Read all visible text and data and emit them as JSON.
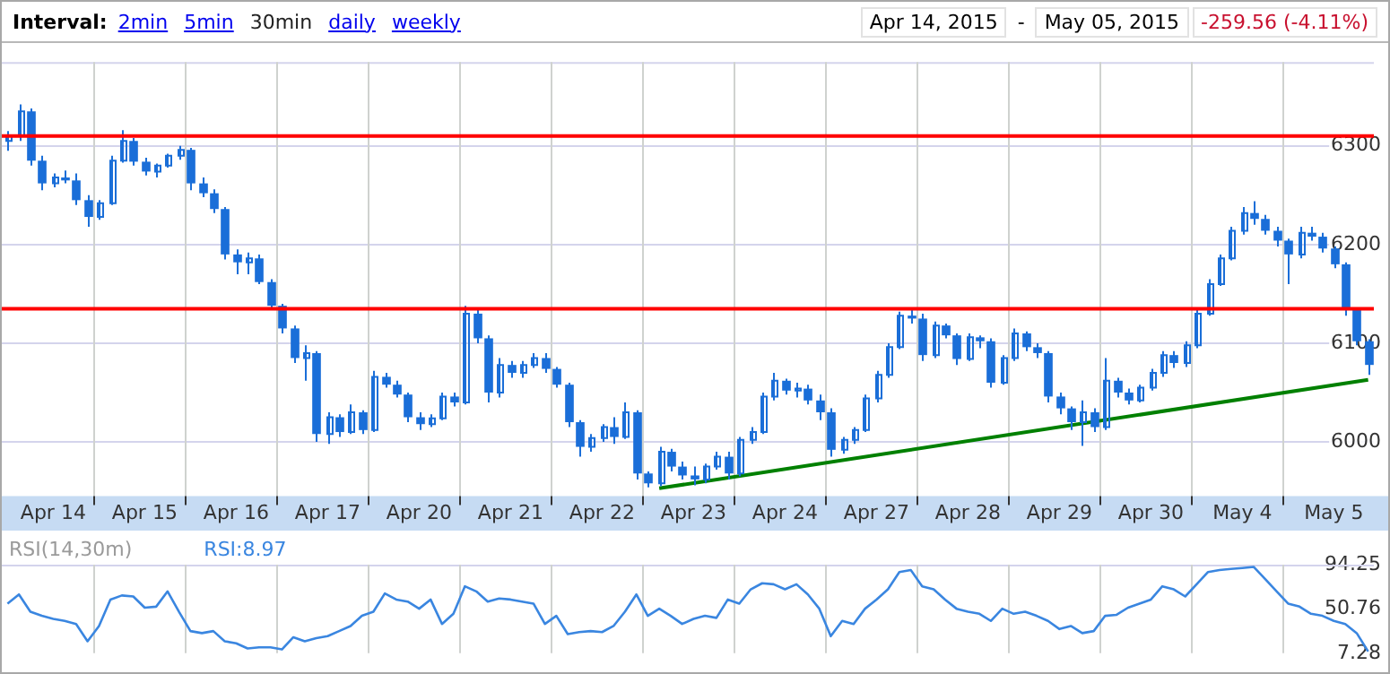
{
  "chart_data": [
    {
      "type": "candlestick",
      "annotations": [
        "Interval:",
        "2min",
        "5min",
        "30min",
        "daily",
        "weekly",
        "Apr 14, 2015",
        "-",
        "May 05, 2015",
        "-259.56 (-4.11%)"
      ],
      "categories": [
        null,
        null,
        null,
        null,
        "Apr 14",
        null,
        null,
        null,
        null,
        null,
        null,
        null,
        "Apr 15",
        null,
        null,
        null,
        null,
        null,
        null,
        null,
        "Apr 16",
        null,
        null,
        null,
        null,
        null,
        null,
        null,
        "Apr 17",
        null,
        null,
        null,
        null,
        null,
        null,
        null,
        "Apr 20",
        null,
        null,
        null,
        null,
        null,
        null,
        null,
        "Apr 21",
        null,
        null,
        null,
        null,
        null,
        null,
        null,
        "Apr 22",
        null,
        null,
        null,
        null,
        null,
        null,
        null,
        "Apr 23",
        null,
        null,
        null,
        null,
        null,
        null,
        null,
        "Apr 24",
        null,
        null,
        null,
        null,
        null,
        null,
        null,
        "Apr 27",
        null,
        null,
        null,
        null,
        null,
        null,
        null,
        "Apr 28",
        null,
        null,
        null,
        null,
        null,
        null,
        null,
        "Apr 29",
        null,
        null,
        null,
        null,
        null,
        null,
        null,
        "Apr 30",
        null,
        null,
        null,
        null,
        null,
        null,
        null,
        "May 4",
        null,
        null,
        null,
        null,
        null,
        null,
        null,
        "May 5",
        null,
        null,
        null
      ],
      "ohlc": [
        [
          6305,
          6315,
          6295,
          6310
        ],
        [
          6310,
          6342,
          6305,
          6335
        ],
        [
          6335,
          6338,
          6280,
          6285
        ],
        [
          6285,
          6290,
          6255,
          6262
        ],
        [
          6262,
          6272,
          6258,
          6268
        ],
        [
          6268,
          6275,
          6262,
          6265
        ],
        [
          6265,
          6272,
          6240,
          6245
        ],
        [
          6245,
          6250,
          6218,
          6228
        ],
        [
          6228,
          6245,
          6225,
          6242
        ],
        [
          6242,
          6290,
          6240,
          6285
        ],
        [
          6285,
          6316,
          6283,
          6305
        ],
        [
          6305,
          6308,
          6280,
          6284
        ],
        [
          6284,
          6288,
          6270,
          6274
        ],
        [
          6274,
          6282,
          6268,
          6280
        ],
        [
          6280,
          6292,
          6278,
          6290
        ],
        [
          6290,
          6300,
          6286,
          6296
        ],
        [
          6296,
          6298,
          6255,
          6262
        ],
        [
          6262,
          6268,
          6248,
          6252
        ],
        [
          6252,
          6256,
          6232,
          6236
        ],
        [
          6236,
          6238,
          6185,
          6190
        ],
        [
          6190,
          6195,
          6170,
          6182
        ],
        [
          6182,
          6192,
          6170,
          6186
        ],
        [
          6186,
          6190,
          6160,
          6162
        ],
        [
          6162,
          6165,
          6135,
          6138
        ],
        [
          6138,
          6140,
          6110,
          6115
        ],
        [
          6115,
          6118,
          6080,
          6085
        ],
        [
          6085,
          6098,
          6062,
          6090
        ],
        [
          6090,
          6092,
          6000,
          6008
        ],
        [
          6008,
          6030,
          5998,
          6025
        ],
        [
          6025,
          6028,
          6005,
          6010
        ],
        [
          6010,
          6038,
          6008,
          6030
        ],
        [
          6030,
          6032,
          6008,
          6012
        ],
        [
          6012,
          6072,
          6010,
          6066
        ],
        [
          6066,
          6070,
          6055,
          6058
        ],
        [
          6058,
          6062,
          6045,
          6048
        ],
        [
          6048,
          6050,
          6020,
          6025
        ],
        [
          6025,
          6030,
          6012,
          6018
        ],
        [
          6018,
          6028,
          6015,
          6024
        ],
        [
          6024,
          6050,
          6022,
          6046
        ],
        [
          6046,
          6050,
          6036,
          6040
        ],
        [
          6040,
          6138,
          6038,
          6130
        ],
        [
          6130,
          6134,
          6100,
          6105
        ],
        [
          6105,
          6108,
          6040,
          6050
        ],
        [
          6050,
          6085,
          6045,
          6078
        ],
        [
          6078,
          6082,
          6065,
          6070
        ],
        [
          6070,
          6082,
          6065,
          6078
        ],
        [
          6078,
          6090,
          6075,
          6085
        ],
        [
          6085,
          6090,
          6070,
          6074
        ],
        [
          6074,
          6076,
          6055,
          6058
        ],
        [
          6058,
          6060,
          6015,
          6020
        ],
        [
          6020,
          6022,
          5985,
          5995
        ],
        [
          5995,
          6008,
          5990,
          6004
        ],
        [
          6004,
          6018,
          6000,
          6015
        ],
        [
          6015,
          6025,
          5998,
          6005
        ],
        [
          6005,
          6040,
          6003,
          6030
        ],
        [
          6030,
          6032,
          5962,
          5968
        ],
        [
          5968,
          5970,
          5954,
          5958
        ],
        [
          5958,
          5995,
          5955,
          5990
        ],
        [
          5990,
          5993,
          5970,
          5975
        ],
        [
          5975,
          5980,
          5962,
          5966
        ],
        [
          5966,
          5975,
          5956,
          5962
        ],
        [
          5962,
          5978,
          5958,
          5975
        ],
        [
          5975,
          5990,
          5972,
          5985
        ],
        [
          5985,
          5990,
          5962,
          5968
        ],
        [
          5968,
          6005,
          5965,
          6002
        ],
        [
          6002,
          6015,
          5998,
          6010
        ],
        [
          6010,
          6050,
          6008,
          6046
        ],
        [
          6046,
          6070,
          6042,
          6062
        ],
        [
          6062,
          6064,
          6048,
          6052
        ],
        [
          6052,
          6060,
          6045,
          6054
        ],
        [
          6054,
          6058,
          6038,
          6042
        ],
        [
          6042,
          6048,
          6022,
          6030
        ],
        [
          6030,
          6034,
          5985,
          5992
        ],
        [
          5992,
          6005,
          5988,
          6002
        ],
        [
          6002,
          6015,
          5998,
          6012
        ],
        [
          6012,
          6048,
          6010,
          6044
        ],
        [
          6044,
          6072,
          6040,
          6068
        ],
        [
          6068,
          6100,
          6065,
          6096
        ],
        [
          6096,
          6132,
          6094,
          6128
        ],
        [
          6128,
          6134,
          6120,
          6125
        ],
        [
          6125,
          6130,
          6082,
          6088
        ],
        [
          6088,
          6122,
          6085,
          6118
        ],
        [
          6118,
          6120,
          6105,
          6108
        ],
        [
          6108,
          6110,
          6078,
          6084
        ],
        [
          6084,
          6110,
          6082,
          6106
        ],
        [
          6106,
          6108,
          6095,
          6102
        ],
        [
          6102,
          6105,
          6055,
          6060
        ],
        [
          6060,
          6088,
          6058,
          6085
        ],
        [
          6085,
          6115,
          6082,
          6110
        ],
        [
          6110,
          6112,
          6092,
          6096
        ],
        [
          6096,
          6100,
          6085,
          6090
        ],
        [
          6090,
          6092,
          6040,
          6046
        ],
        [
          6046,
          6050,
          6028,
          6034
        ],
        [
          6034,
          6036,
          6012,
          6020
        ],
        [
          6020,
          6042,
          5996,
          6030
        ],
        [
          6030,
          6034,
          6010,
          6015
        ],
        [
          6015,
          6085,
          6012,
          6062
        ],
        [
          6062,
          6065,
          6045,
          6050
        ],
        [
          6050,
          6054,
          6038,
          6042
        ],
        [
          6042,
          6058,
          6040,
          6055
        ],
        [
          6055,
          6074,
          6052,
          6070
        ],
        [
          6070,
          6092,
          6066,
          6088
        ],
        [
          6088,
          6092,
          6075,
          6080
        ],
        [
          6080,
          6102,
          6076,
          6098
        ],
        [
          6098,
          6135,
          6095,
          6130
        ],
        [
          6130,
          6165,
          6128,
          6160
        ],
        [
          6160,
          6190,
          6158,
          6186
        ],
        [
          6186,
          6218,
          6184,
          6214
        ],
        [
          6214,
          6238,
          6210,
          6232
        ],
        [
          6232,
          6244,
          6220,
          6226
        ],
        [
          6226,
          6230,
          6210,
          6214
        ],
        [
          6214,
          6218,
          6198,
          6204
        ],
        [
          6204,
          6206,
          6160,
          6190
        ],
        [
          6190,
          6218,
          6186,
          6212
        ],
        [
          6212,
          6218,
          6204,
          6208
        ],
        [
          6208,
          6212,
          6192,
          6196
        ],
        [
          6196,
          6198,
          6176,
          6180
        ],
        [
          6180,
          6182,
          6128,
          6134
        ],
        [
          6134,
          6136,
          6098,
          6102
        ],
        [
          6102,
          6104,
          6068,
          6078
        ]
      ],
      "color": "#1a6ed8",
      "ylim": [
        5945,
        6385
      ],
      "yticks": [
        6000,
        6100,
        6200,
        6300
      ],
      "grid": true,
      "marker": "none",
      "ref_lines": [
        {
          "axis": "y",
          "value": 6310,
          "color": "#ff0000"
        },
        {
          "axis": "y",
          "value": 6135,
          "color": "#ff0000"
        }
      ],
      "series": [
        {
          "type": "line",
          "color": "#008000",
          "values": [
            null,
            null,
            null,
            null,
            null,
            null,
            null,
            null,
            null,
            null,
            null,
            null,
            null,
            null,
            null,
            null,
            null,
            null,
            null,
            null,
            null,
            null,
            null,
            null,
            null,
            null,
            null,
            null,
            null,
            null,
            null,
            null,
            null,
            null,
            null,
            null,
            null,
            null,
            null,
            null,
            null,
            null,
            null,
            null,
            null,
            null,
            null,
            null,
            null,
            null,
            null,
            null,
            null,
            null,
            null,
            null,
            null,
            5953,
            null,
            null,
            null,
            null,
            null,
            null,
            null,
            null,
            null,
            null,
            null,
            null,
            null,
            null,
            null,
            null,
            null,
            null,
            null,
            null,
            null,
            null,
            null,
            null,
            null,
            null,
            null,
            null,
            null,
            null,
            null,
            null,
            null,
            null,
            null,
            null,
            null,
            null,
            null,
            null,
            null,
            null,
            null,
            null,
            null,
            null,
            null,
            null,
            null,
            null,
            null,
            null,
            null,
            null,
            null,
            null,
            null,
            null,
            null,
            null,
            null,
            6063
          ]
        }
      ]
    },
    {
      "type": "line",
      "title": "RSI(14,30m)",
      "legend": "top left",
      "marker": "none",
      "grid": "x",
      "tick_labels": "y",
      "ylim": [
        7.28,
        94.25
      ],
      "yticks": [
        7.28,
        50.76,
        94.25
      ],
      "categories": [
        null,
        null,
        null,
        null,
        null,
        null,
        null,
        null,
        null,
        null,
        null,
        null,
        null,
        null,
        null,
        null,
        null,
        null,
        null,
        null,
        null,
        null,
        null,
        null,
        null,
        null,
        null,
        null,
        null,
        null,
        null,
        null,
        null,
        null,
        null,
        null,
        null,
        null,
        null,
        null,
        null,
        null,
        null,
        null,
        null,
        null,
        null,
        null,
        null,
        null,
        null,
        null,
        null,
        null,
        null,
        null,
        null,
        null,
        null,
        null,
        null,
        null,
        null,
        null,
        null,
        null,
        null,
        null,
        null,
        null,
        null,
        null,
        null,
        null,
        null,
        null,
        null,
        null,
        null,
        null,
        null,
        null,
        null,
        null,
        null,
        null,
        null,
        null,
        null,
        null,
        null,
        null,
        null,
        null,
        null,
        null,
        null,
        null,
        null,
        null,
        null,
        null,
        null,
        null,
        null,
        null,
        null,
        null,
        null,
        null,
        null,
        null,
        null,
        null,
        null,
        null,
        null,
        null,
        null,
        null
      ],
      "series": [
        {
          "name": "RSI:8.97",
          "color": "#3a86e0",
          "values": [
            56,
            65,
            48,
            44,
            41,
            39,
            36,
            19,
            34,
            60,
            64,
            63,
            52,
            53,
            68,
            48,
            29,
            27,
            29,
            19,
            17,
            12,
            13,
            13,
            11,
            23,
            19,
            22,
            24,
            29,
            34,
            44,
            48,
            66,
            60,
            58,
            51,
            60,
            36,
            46,
            73,
            68,
            58,
            61,
            60,
            58,
            56,
            36,
            44,
            26,
            28,
            29,
            28,
            34,
            48,
            65,
            44,
            51,
            44,
            36,
            41,
            44,
            42,
            60,
            56,
            70,
            76,
            75,
            70,
            75,
            65,
            51,
            24,
            39,
            36,
            51,
            60,
            70,
            87,
            89,
            73,
            70,
            60,
            51,
            48,
            46,
            39,
            51,
            46,
            48,
            44,
            39,
            31,
            34,
            27,
            29,
            44,
            45,
            52,
            56,
            60,
            73,
            70,
            63,
            75,
            87,
            89,
            90,
            91,
            92,
            80,
            68,
            56,
            53,
            46,
            44,
            39,
            36,
            27,
            9
          ]
        }
      ]
    }
  ]
}
